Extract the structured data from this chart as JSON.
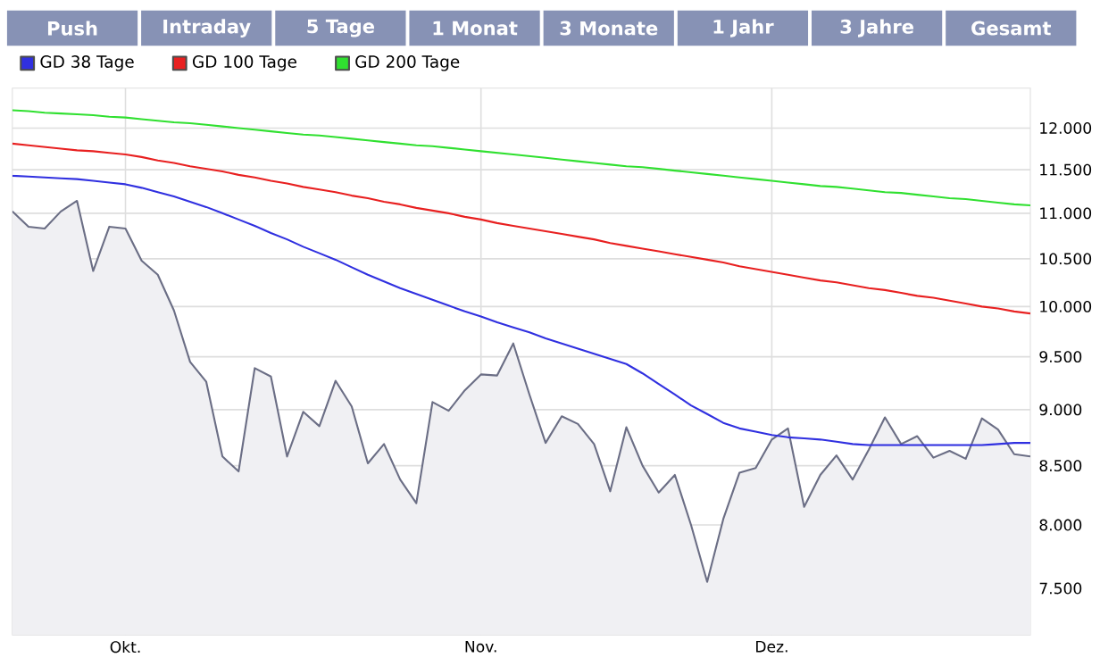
{
  "chart_data": {
    "type": "line",
    "annotations": [
      "Push",
      "Intraday",
      "5 Tage",
      "1 Monat",
      "3 Monate",
      "1 Jahr",
      "3 Jahre",
      "Gesamt"
    ],
    "categories": [
      null,
      null,
      null,
      null,
      null,
      null,
      null,
      "Okt.",
      null,
      null,
      null,
      null,
      null,
      null,
      null,
      null,
      null,
      null,
      null,
      null,
      null,
      null,
      null,
      null,
      null,
      null,
      null,
      null,
      null,
      "Nov.",
      null,
      null,
      null,
      null,
      null,
      null,
      null,
      null,
      null,
      null,
      null,
      null,
      null,
      null,
      null,
      null,
      null,
      "Dez.",
      null,
      null,
      null,
      null,
      null,
      null,
      null,
      null,
      null,
      null,
      null,
      null,
      null,
      null,
      null,
      null
    ],
    "series": [
      {
        "type": "area",
        "color": "#6b6e85",
        "values": [
          11020,
          10850,
          10830,
          11020,
          11140,
          10370,
          10850,
          10830,
          10480,
          10330,
          9960,
          9450,
          9260,
          8580,
          8450,
          9390,
          9310,
          8580,
          8980,
          8850,
          9270,
          9030,
          8520,
          8690,
          8380,
          8180,
          9070,
          8990,
          9180,
          9330,
          9320,
          9630,
          9140,
          8700,
          8940,
          8870,
          8690,
          8280,
          8840,
          8500,
          8270,
          8420,
          8000,
          7550,
          8050,
          8440,
          8480,
          8730,
          8830,
          8150,
          8420,
          8590,
          8380,
          8640,
          8930,
          8690,
          8760,
          8570,
          8630,
          8560,
          8920,
          8820,
          8600,
          8580
        ]
      },
      {
        "name": "GD 38 Tage",
        "color": "#3030e0",
        "values": [
          11430,
          11420,
          11410,
          11400,
          11390,
          11370,
          11350,
          11330,
          11290,
          11240,
          11190,
          11130,
          11070,
          11000,
          10930,
          10860,
          10780,
          10710,
          10630,
          10560,
          10490,
          10410,
          10330,
          10260,
          10190,
          10130,
          10070,
          10010,
          9950,
          9900,
          9840,
          9790,
          9740,
          9680,
          9630,
          9580,
          9530,
          9480,
          9430,
          9340,
          9240,
          9140,
          9040,
          8960,
          8880,
          8830,
          8800,
          8770,
          8750,
          8740,
          8730,
          8710,
          8690,
          8680,
          8680,
          8680,
          8680,
          8680,
          8680,
          8680,
          8680,
          8690,
          8700,
          8700
        ]
      },
      {
        "name": "GD 100 Tage",
        "color": "#e82020",
        "values": [
          11810,
          11790,
          11770,
          11750,
          11730,
          11720,
          11700,
          11680,
          11650,
          11610,
          11580,
          11540,
          11510,
          11480,
          11440,
          11410,
          11370,
          11340,
          11300,
          11270,
          11240,
          11200,
          11170,
          11130,
          11100,
          11060,
          11030,
          11000,
          10960,
          10930,
          10890,
          10860,
          10830,
          10800,
          10770,
          10740,
          10710,
          10670,
          10640,
          10610,
          10580,
          10550,
          10520,
          10490,
          10460,
          10420,
          10390,
          10360,
          10330,
          10300,
          10270,
          10250,
          10220,
          10190,
          10170,
          10140,
          10110,
          10090,
          10060,
          10030,
          10000,
          9980,
          9950,
          9930
        ]
      },
      {
        "name": "GD 200 Tage",
        "color": "#30e030",
        "values": [
          12220,
          12210,
          12190,
          12180,
          12170,
          12160,
          12140,
          12130,
          12110,
          12090,
          12070,
          12060,
          12040,
          12020,
          12000,
          11980,
          11960,
          11940,
          11920,
          11910,
          11890,
          11870,
          11850,
          11830,
          11810,
          11790,
          11780,
          11760,
          11740,
          11720,
          11700,
          11680,
          11660,
          11640,
          11620,
          11600,
          11580,
          11560,
          11540,
          11530,
          11510,
          11490,
          11470,
          11450,
          11430,
          11410,
          11390,
          11370,
          11350,
          11330,
          11310,
          11300,
          11280,
          11260,
          11240,
          11230,
          11210,
          11190,
          11170,
          11160,
          11140,
          11120,
          11100,
          11090
        ]
      }
    ],
    "ylim": [
      7150,
      12500
    ],
    "yticks": [
      {
        "value": 7500,
        "label": "7.500"
      },
      {
        "value": 8000,
        "label": "8.000"
      },
      {
        "value": 8500,
        "label": "8.500"
      },
      {
        "value": 9000,
        "label": "9.000"
      },
      {
        "value": 9500,
        "label": "9.500"
      },
      {
        "value": 10000,
        "label": "10.000"
      },
      {
        "value": 10500,
        "label": "10.500"
      },
      {
        "value": 11000,
        "label": "11.000"
      },
      {
        "value": 11500,
        "label": "11.500"
      },
      {
        "value": 12000,
        "label": "12.000"
      }
    ],
    "log": "y",
    "grid": true,
    "legend": "top left"
  }
}
